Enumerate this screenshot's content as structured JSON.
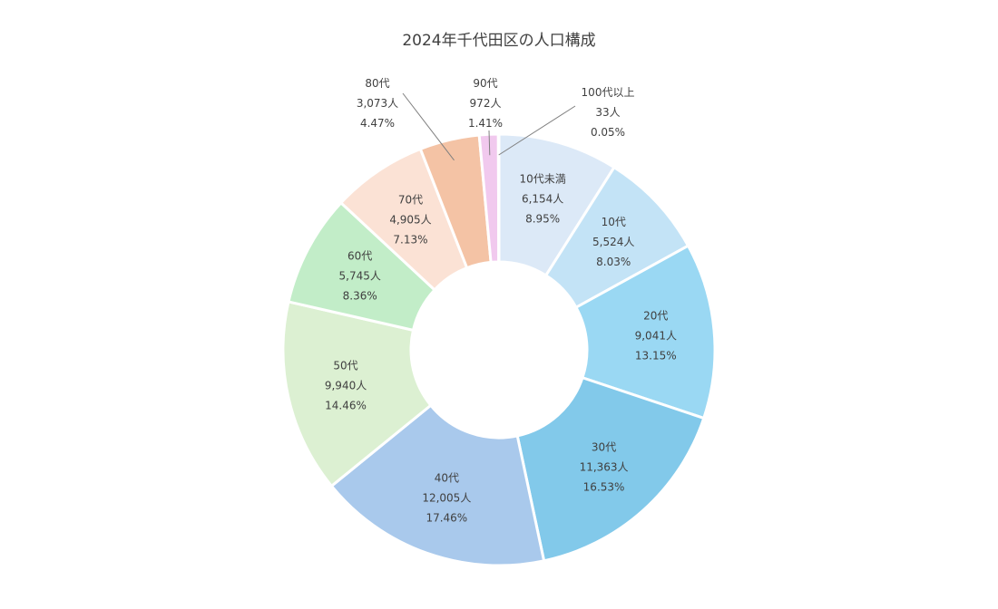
{
  "chart_data": {
    "type": "pie",
    "title": "2024年千代田区の人口構成",
    "categories": [
      "10代未満",
      "10代",
      "20代",
      "30代",
      "40代",
      "50代",
      "60代",
      "70代",
      "80代",
      "90代",
      "100代以上"
    ],
    "values": [
      6154,
      5524,
      9041,
      11363,
      12005,
      9940,
      5745,
      4905,
      3073,
      972,
      33
    ],
    "value_labels": [
      "6,154人",
      "5,524人",
      "9,041人",
      "11,363人",
      "12,005人",
      "9,940人",
      "5,745人",
      "4,905人",
      "3,073人",
      "972人",
      "33人"
    ],
    "percent_labels": [
      "8.95%",
      "8.03%",
      "13.15%",
      "16.53%",
      "17.46%",
      "14.46%",
      "8.36%",
      "7.13%",
      "4.47%",
      "1.41%",
      "0.05%"
    ],
    "colors": [
      "#dce9f7",
      "#c3e3f6",
      "#9ad8f3",
      "#82c9ea",
      "#a9c9ec",
      "#dcf0d2",
      "#c2edc8",
      "#fbe2d5",
      "#f4c3a5",
      "#f1c9ee",
      "#f6e0f0"
    ],
    "donut": true,
    "legend": "none"
  }
}
